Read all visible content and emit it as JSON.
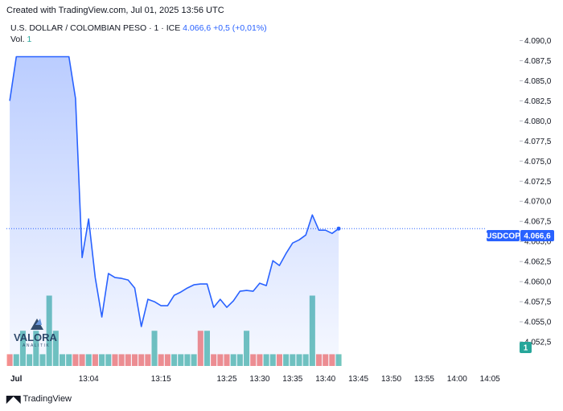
{
  "header": {
    "created": "Created with TradingView.com, Jul 01, 2025 13:56 UTC"
  },
  "legend": {
    "symbol": "U.S. DOLLAR / COLOMBIAN PESO · 1 · ICE",
    "price": "4.066,6",
    "change": "+0,5 (+0,01%)",
    "vol_label": "Vol.",
    "vol_value": "1"
  },
  "watermark": {
    "text": "VALORA",
    "sub": "ANALITIK"
  },
  "footer": {
    "brand": "TradingView"
  },
  "tags": {
    "ticker": "USDCOP",
    "price": "4.066,6",
    "volume": "1"
  },
  "colors": {
    "line": "#2962ff",
    "up_vol": "#26a69a",
    "down_vol": "#ef5350",
    "area_top": "#2962ff"
  },
  "chart_data": {
    "type": "area",
    "ylim": [
      4050.8,
      4091.0
    ],
    "yticks": [
      "4.090,0",
      "4.087,5",
      "4.085,0",
      "4.082,5",
      "4.080,0",
      "4.077,5",
      "4.075,0",
      "4.072,5",
      "4.070,0",
      "4.067,5",
      "4.065,0",
      "4.062,5",
      "4.060,0",
      "4.057,5",
      "4.055,0",
      "4.052,5"
    ],
    "ytick_values": [
      4090,
      4087.5,
      4085,
      4082.5,
      4080,
      4077.5,
      4075,
      4072.5,
      4070,
      4067.5,
      4065,
      4062.5,
      4060,
      4057.5,
      4055,
      4052.5
    ],
    "xticks": [
      {
        "label": "Jul",
        "t": 0
      },
      {
        "label": "13:04",
        "t": 13
      },
      {
        "label": "13:15",
        "t": 24
      },
      {
        "label": "13:25",
        "t": 34
      },
      {
        "label": "13:30",
        "t": 39
      },
      {
        "label": "13:35",
        "t": 44
      },
      {
        "label": "13:40",
        "t": 49
      },
      {
        "label": "13:45",
        "t": 54
      },
      {
        "label": "13:50",
        "t": 59
      },
      {
        "label": "13:55",
        "t": 64
      },
      {
        "label": "14:00",
        "t": 69
      },
      {
        "label": "14:05",
        "t": 74
      }
    ],
    "t_range": [
      0.5,
      78.5
    ],
    "price_series": [
      {
        "t": 1,
        "v": 4082.5
      },
      {
        "t": 2,
        "v": 4088.0
      },
      {
        "t": 3,
        "v": 4088.0
      },
      {
        "t": 4,
        "v": 4088.0
      },
      {
        "t": 5,
        "v": 4088.0
      },
      {
        "t": 6,
        "v": 4088.0
      },
      {
        "t": 7,
        "v": 4088.0
      },
      {
        "t": 8,
        "v": 4088.0
      },
      {
        "t": 9,
        "v": 4088.0
      },
      {
        "t": 10,
        "v": 4088.0
      },
      {
        "t": 11,
        "v": 4082.8
      },
      {
        "t": 12,
        "v": 4063.0
      },
      {
        "t": 13,
        "v": 4067.8
      },
      {
        "t": 14,
        "v": 4060.5
      },
      {
        "t": 15,
        "v": 4055.6
      },
      {
        "t": 16,
        "v": 4061.0
      },
      {
        "t": 17,
        "v": 4060.5
      },
      {
        "t": 18,
        "v": 4060.4
      },
      {
        "t": 19,
        "v": 4060.2
      },
      {
        "t": 20,
        "v": 4059.2
      },
      {
        "t": 21,
        "v": 4054.4
      },
      {
        "t": 22,
        "v": 4057.8
      },
      {
        "t": 23,
        "v": 4057.5
      },
      {
        "t": 24,
        "v": 4057.0
      },
      {
        "t": 25,
        "v": 4057.0
      },
      {
        "t": 26,
        "v": 4058.3
      },
      {
        "t": 27,
        "v": 4058.7
      },
      {
        "t": 28,
        "v": 4059.2
      },
      {
        "t": 29,
        "v": 4059.6
      },
      {
        "t": 30,
        "v": 4059.7
      },
      {
        "t": 31,
        "v": 4059.7
      },
      {
        "t": 32,
        "v": 4056.8
      },
      {
        "t": 33,
        "v": 4057.8
      },
      {
        "t": 34,
        "v": 4056.8
      },
      {
        "t": 35,
        "v": 4057.6
      },
      {
        "t": 36,
        "v": 4058.8
      },
      {
        "t": 37,
        "v": 4058.9
      },
      {
        "t": 38,
        "v": 4058.8
      },
      {
        "t": 39,
        "v": 4059.8
      },
      {
        "t": 40,
        "v": 4059.5
      },
      {
        "t": 41,
        "v": 4062.6
      },
      {
        "t": 42,
        "v": 4062.0
      },
      {
        "t": 43,
        "v": 4063.5
      },
      {
        "t": 44,
        "v": 4064.8
      },
      {
        "t": 45,
        "v": 4065.2
      },
      {
        "t": 46,
        "v": 4065.8
      },
      {
        "t": 47,
        "v": 4068.3
      },
      {
        "t": 48,
        "v": 4066.4
      },
      {
        "t": 49,
        "v": 4066.4
      },
      {
        "t": 50,
        "v": 4066.0
      },
      {
        "t": 51,
        "v": 4066.6
      }
    ],
    "volume": {
      "max": 7.2,
      "bars": [
        {
          "t": 1,
          "v": 1,
          "d": "down"
        },
        {
          "t": 2,
          "v": 1,
          "d": "up"
        },
        {
          "t": 3,
          "v": 3,
          "d": "up"
        },
        {
          "t": 4,
          "v": 1,
          "d": "up"
        },
        {
          "t": 5,
          "v": 3,
          "d": "up"
        },
        {
          "t": 6,
          "v": 1,
          "d": "up"
        },
        {
          "t": 7,
          "v": 6,
          "d": "up"
        },
        {
          "t": 8,
          "v": 3,
          "d": "up"
        },
        {
          "t": 9,
          "v": 1,
          "d": "up"
        },
        {
          "t": 10,
          "v": 1,
          "d": "up"
        },
        {
          "t": 11,
          "v": 1,
          "d": "down"
        },
        {
          "t": 12,
          "v": 1,
          "d": "down"
        },
        {
          "t": 13,
          "v": 1,
          "d": "up"
        },
        {
          "t": 14,
          "v": 1,
          "d": "down"
        },
        {
          "t": 15,
          "v": 1,
          "d": "up"
        },
        {
          "t": 16,
          "v": 1,
          "d": "up"
        },
        {
          "t": 17,
          "v": 1,
          "d": "down"
        },
        {
          "t": 18,
          "v": 1,
          "d": "down"
        },
        {
          "t": 19,
          "v": 1,
          "d": "down"
        },
        {
          "t": 20,
          "v": 1,
          "d": "down"
        },
        {
          "t": 21,
          "v": 1,
          "d": "down"
        },
        {
          "t": 22,
          "v": 1,
          "d": "down"
        },
        {
          "t": 23,
          "v": 3,
          "d": "up"
        },
        {
          "t": 24,
          "v": 1,
          "d": "down"
        },
        {
          "t": 25,
          "v": 1,
          "d": "down"
        },
        {
          "t": 26,
          "v": 1,
          "d": "up"
        },
        {
          "t": 27,
          "v": 1,
          "d": "up"
        },
        {
          "t": 28,
          "v": 1,
          "d": "up"
        },
        {
          "t": 29,
          "v": 1,
          "d": "up"
        },
        {
          "t": 30,
          "v": 3,
          "d": "down"
        },
        {
          "t": 31,
          "v": 3,
          "d": "up"
        },
        {
          "t": 32,
          "v": 1,
          "d": "down"
        },
        {
          "t": 33,
          "v": 1,
          "d": "down"
        },
        {
          "t": 34,
          "v": 1,
          "d": "down"
        },
        {
          "t": 35,
          "v": 1,
          "d": "up"
        },
        {
          "t": 36,
          "v": 1,
          "d": "up"
        },
        {
          "t": 37,
          "v": 3,
          "d": "up"
        },
        {
          "t": 38,
          "v": 1,
          "d": "down"
        },
        {
          "t": 39,
          "v": 1,
          "d": "down"
        },
        {
          "t": 40,
          "v": 1,
          "d": "up"
        },
        {
          "t": 41,
          "v": 1,
          "d": "up"
        },
        {
          "t": 42,
          "v": 1,
          "d": "down"
        },
        {
          "t": 43,
          "v": 1,
          "d": "up"
        },
        {
          "t": 44,
          "v": 1,
          "d": "up"
        },
        {
          "t": 45,
          "v": 1,
          "d": "up"
        },
        {
          "t": 46,
          "v": 1,
          "d": "up"
        },
        {
          "t": 47,
          "v": 6,
          "d": "up"
        },
        {
          "t": 48,
          "v": 1,
          "d": "down"
        },
        {
          "t": 49,
          "v": 1,
          "d": "down"
        },
        {
          "t": 50,
          "v": 1,
          "d": "down"
        },
        {
          "t": 51,
          "v": 1,
          "d": "up"
        }
      ]
    },
    "grid": false,
    "last_price": 4066.6
  }
}
